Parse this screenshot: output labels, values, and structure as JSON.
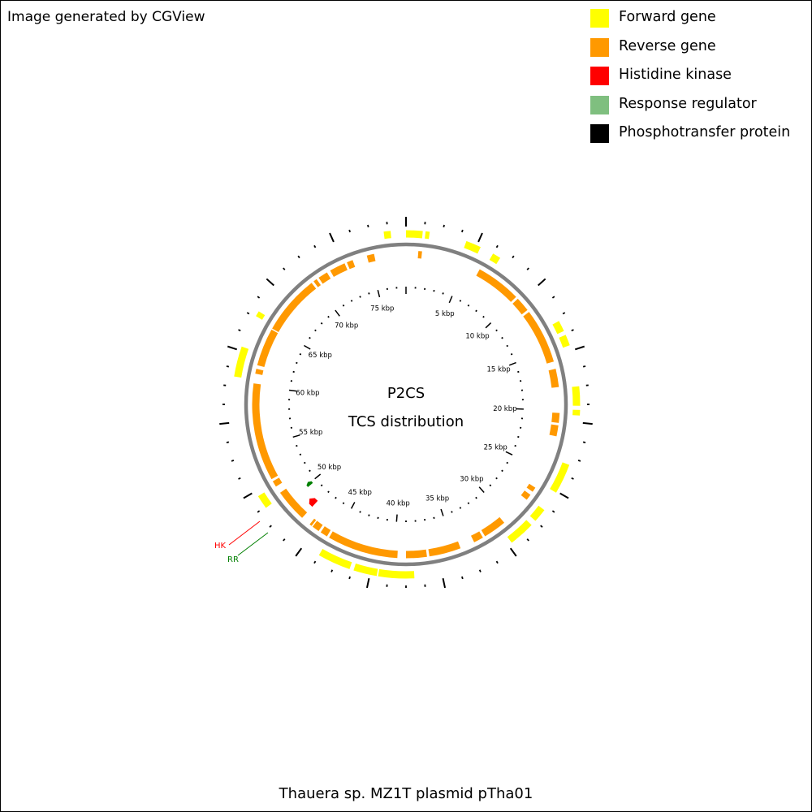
{
  "credit": "Image generated by CGView",
  "footer_title": "Thauera sp. MZ1T plasmid pTha01",
  "center": {
    "line1": "P2CS",
    "line2": "TCS distribution"
  },
  "legend": [
    {
      "label": "Forward gene",
      "color": "#ffff00"
    },
    {
      "label": "Reverse gene",
      "color": "#ff9900"
    },
    {
      "label": "Histidine kinase",
      "color": "#ff0000"
    },
    {
      "label": "Response regulator",
      "color": "#7fbf7f"
    },
    {
      "label": "Phosphotransfer protein",
      "color": "#000000"
    }
  ],
  "map": {
    "total_kbp": 78,
    "tick_labels": [
      "5 kbp",
      "10 kbp",
      "15 kbp",
      "20 kbp",
      "25 kbp",
      "30 kbp",
      "35 kbp",
      "40 kbp",
      "45 kbp",
      "50 kbp",
      "55 kbp",
      "60 kbp",
      "65 kbp",
      "70 kbp",
      "75 kbp"
    ],
    "backbone_color": "#808080",
    "forward_genes_kbp": [
      [
        78.0,
        1.2
      ],
      [
        1.4,
        1.7
      ],
      [
        4.4,
        5.5
      ],
      [
        6.5,
        7.1
      ],
      [
        13.3,
        14.1
      ],
      [
        14.4,
        15.2
      ],
      [
        18.2,
        19.6
      ],
      [
        19.9,
        20.3
      ],
      [
        23.9,
        26.1
      ],
      [
        27.6,
        28.6
      ],
      [
        29.0,
        30.9
      ],
      [
        38.4,
        41.0
      ],
      [
        41.1,
        42.8
      ],
      [
        43.1,
        45.5
      ],
      [
        50.6,
        51.6
      ],
      [
        60.5,
        62.7
      ],
      [
        65.1,
        65.5
      ],
      [
        76.4,
        76.9
      ]
    ],
    "reverse_genes_kbp": [
      [
        1.0,
        1.3
      ],
      [
        6.2,
        9.9
      ],
      [
        10.1,
        11.3
      ],
      [
        11.5,
        16.0
      ],
      [
        16.6,
        18.1
      ],
      [
        20.2,
        21.0
      ],
      [
        21.2,
        22.1
      ],
      [
        26.6,
        27.0
      ],
      [
        27.3,
        27.8
      ],
      [
        30.4,
        32.3
      ],
      [
        32.5,
        33.3
      ],
      [
        34.5,
        37.1
      ],
      [
        37.3,
        39.0
      ],
      [
        39.7,
        45.5
      ],
      [
        45.7,
        46.3
      ],
      [
        46.5,
        47.1
      ],
      [
        47.2,
        47.4
      ],
      [
        48.2,
        50.9
      ],
      [
        51.5,
        52.0
      ],
      [
        52.2,
        60.2
      ],
      [
        61.0,
        61.4
      ],
      [
        61.7,
        64.8
      ],
      [
        64.9,
        69.8
      ],
      [
        70.0,
        70.3
      ],
      [
        70.5,
        71.3
      ],
      [
        71.6,
        72.9
      ],
      [
        73.1,
        73.6
      ],
      [
        74.8,
        75.4
      ]
    ],
    "histidine_kinase_kbp": [
      48.2,
      48.9
    ],
    "response_regulator_kbp": [
      49.8,
      50.2
    ],
    "callouts": [
      {
        "label": "HK",
        "color": "#ff0000"
      },
      {
        "label": "RR",
        "color": "#007f00"
      }
    ]
  }
}
